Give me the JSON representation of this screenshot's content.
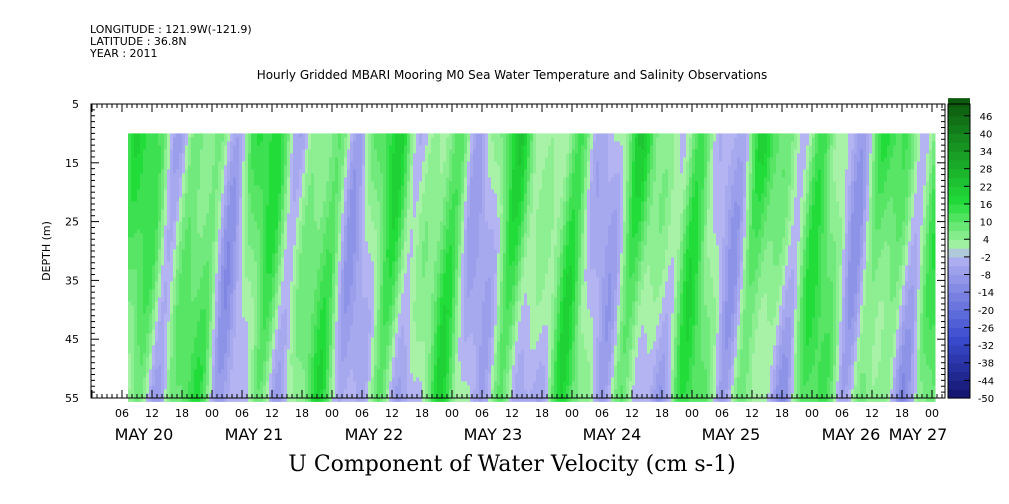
{
  "header": {
    "longitude": "LONGITUDE : 121.9W(-121.9)",
    "latitude": "LATITUDE : 36.8N",
    "year": "YEAR : 2011"
  },
  "chart_data": {
    "type": "heatmap",
    "title": "Hourly Gridded MBARI Mooring M0 Sea Water Temperature and Salinity Observations",
    "xlabel": "U Component of Water Velocity (cm s-1)",
    "ylabel": "DEPTH (m)",
    "ylim": [
      5,
      55
    ],
    "y_inverted": true,
    "y_ticks": [
      5,
      15,
      25,
      35,
      45,
      55
    ],
    "x_hour_ticks": [
      "06",
      "12",
      "18",
      "00",
      "06",
      "12",
      "18",
      "00",
      "06",
      "12",
      "18",
      "00",
      "06",
      "12",
      "18",
      "00",
      "06",
      "12",
      "18",
      "00",
      "06",
      "12",
      "18",
      "00",
      "06",
      "12",
      "18",
      "00"
    ],
    "x_day_labels": [
      "MAY 20",
      "MAY 21",
      "MAY 22",
      "MAY 23",
      "MAY 24",
      "MAY 25",
      "MAY 26",
      "MAY 27"
    ],
    "data_depth_range_m": [
      10,
      55
    ],
    "colorbar": {
      "tick_labels": [
        "46",
        "40",
        "34",
        "28",
        "22",
        "16",
        "10",
        "4",
        "-2",
        "-8",
        "-14",
        "-20",
        "-26",
        "-32",
        "-38",
        "-44",
        "-50"
      ],
      "min": -50,
      "max": 50,
      "step": 3
    },
    "colors": {
      "neg_strong": "#14146e",
      "neg_mid": "#3a4cd0",
      "neg_light": "#b4b4f2",
      "pos_light": "#a8f2a8",
      "pos_mid": "#22dc3a",
      "pos_strong": "#0e5a0e"
    },
    "velocity_pattern_note": ""
  }
}
